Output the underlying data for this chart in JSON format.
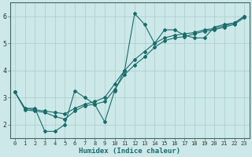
{
  "xlabel": "Humidex (Indice chaleur)",
  "bg_color": "#cce8e8",
  "grid_color": "#aacccc",
  "line_color": "#1a6b6b",
  "xlim": [
    -0.5,
    23.5
  ],
  "ylim": [
    1.5,
    6.5
  ],
  "xticks": [
    0,
    1,
    2,
    3,
    4,
    5,
    6,
    7,
    8,
    9,
    10,
    11,
    12,
    13,
    14,
    15,
    16,
    17,
    18,
    19,
    20,
    21,
    22,
    23
  ],
  "yticks": [
    2,
    3,
    4,
    5,
    6
  ],
  "series1_x": [
    0,
    1,
    2,
    3,
    4,
    5,
    6,
    7,
    8,
    9,
    10,
    11,
    12,
    13,
    14,
    15,
    16,
    17,
    18,
    19,
    20,
    21,
    22,
    23
  ],
  "series1_y": [
    3.2,
    2.6,
    2.6,
    1.75,
    1.75,
    2.0,
    3.25,
    3.0,
    2.75,
    2.1,
    3.25,
    4.0,
    6.1,
    5.7,
    5.0,
    5.5,
    5.5,
    5.3,
    5.2,
    5.2,
    5.6,
    5.7,
    5.75,
    6.0
  ],
  "series2_x": [
    0,
    1,
    2,
    3,
    4,
    5,
    6,
    7,
    8,
    9,
    10,
    11,
    12,
    13,
    14,
    15,
    16,
    17,
    18,
    19,
    20,
    21,
    22,
    23
  ],
  "series2_y": [
    3.2,
    2.6,
    2.55,
    2.5,
    2.45,
    2.4,
    2.6,
    2.75,
    2.85,
    3.0,
    3.5,
    4.0,
    4.4,
    4.7,
    5.0,
    5.2,
    5.3,
    5.35,
    5.4,
    5.5,
    5.55,
    5.65,
    5.75,
    6.0
  ],
  "series3_x": [
    0,
    1,
    2,
    3,
    4,
    5,
    6,
    7,
    8,
    9,
    10,
    11,
    12,
    13,
    14,
    15,
    16,
    17,
    18,
    19,
    20,
    21,
    22,
    23
  ],
  "series3_y": [
    3.2,
    2.55,
    2.5,
    2.45,
    2.3,
    2.2,
    2.5,
    2.7,
    2.75,
    2.85,
    3.3,
    3.85,
    4.2,
    4.5,
    4.85,
    5.1,
    5.2,
    5.25,
    5.35,
    5.45,
    5.5,
    5.6,
    5.7,
    5.95
  ],
  "marker": "D",
  "markersize": 2.0,
  "linewidth": 0.8,
  "tick_fontsize": 5.0,
  "xlabel_fontsize": 6.5
}
